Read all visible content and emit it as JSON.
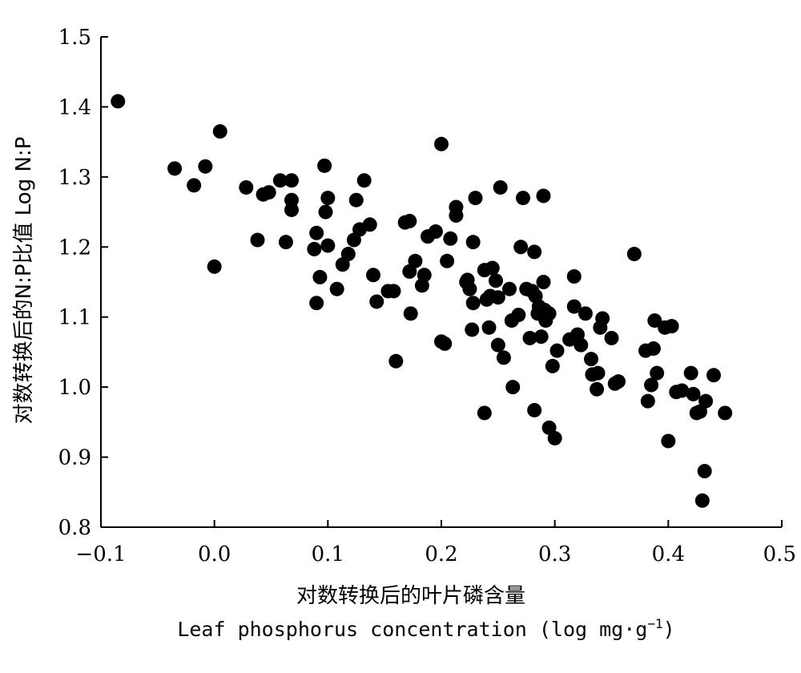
{
  "chart_data": {
    "type": "scatter",
    "title": "",
    "xlabel": "对数转换后的叶片磷含量",
    "xlabel_en": "Leaf phosphorus concentration (log mg·g",
    "xlabel_en_sup": "−1",
    "xlabel_en_close": ")",
    "ylabel": "对数转换后的N:P比值 Log N:P",
    "xlim": [
      -0.1,
      0.5
    ],
    "ylim": [
      0.8,
      1.5
    ],
    "x_ticks": [
      -0.1,
      0.0,
      0.1,
      0.2,
      0.3,
      0.4,
      0.5
    ],
    "x_tick_labels": [
      "−0.1",
      "0.0",
      "0.1",
      "0.2",
      "0.3",
      "0.4",
      "0.5"
    ],
    "y_ticks": [
      0.8,
      0.9,
      1.0,
      1.1,
      1.2,
      1.3,
      1.4,
      1.5
    ],
    "y_tick_labels": [
      "0.8",
      "0.9",
      "1.0",
      "1.1",
      "1.2",
      "1.3",
      "1.4",
      "1.5"
    ],
    "grid": false,
    "marker_color": "#000000",
    "points": [
      [
        -0.085,
        1.408
      ],
      [
        -0.035,
        1.312
      ],
      [
        -0.018,
        1.288
      ],
      [
        -0.008,
        1.315
      ],
      [
        0.005,
        1.365
      ],
      [
        0.0,
        1.172
      ],
      [
        0.028,
        1.285
      ],
      [
        0.038,
        1.21
      ],
      [
        0.043,
        1.275
      ],
      [
        0.048,
        1.278
      ],
      [
        0.058,
        1.295
      ],
      [
        0.063,
        1.207
      ],
      [
        0.068,
        1.295
      ],
      [
        0.068,
        1.267
      ],
      [
        0.068,
        1.253
      ],
      [
        0.088,
        1.197
      ],
      [
        0.09,
        1.22
      ],
      [
        0.09,
        1.12
      ],
      [
        0.093,
        1.157
      ],
      [
        0.097,
        1.316
      ],
      [
        0.098,
        1.25
      ],
      [
        0.1,
        1.27
      ],
      [
        0.1,
        1.202
      ],
      [
        0.108,
        1.14
      ],
      [
        0.113,
        1.175
      ],
      [
        0.118,
        1.19
      ],
      [
        0.123,
        1.21
      ],
      [
        0.125,
        1.267
      ],
      [
        0.128,
        1.225
      ],
      [
        0.132,
        1.295
      ],
      [
        0.137,
        1.232
      ],
      [
        0.14,
        1.16
      ],
      [
        0.143,
        1.122
      ],
      [
        0.153,
        1.137
      ],
      [
        0.158,
        1.137
      ],
      [
        0.16,
        1.037
      ],
      [
        0.168,
        1.235
      ],
      [
        0.172,
        1.237
      ],
      [
        0.172,
        1.165
      ],
      [
        0.173,
        1.105
      ],
      [
        0.177,
        1.18
      ],
      [
        0.183,
        1.145
      ],
      [
        0.185,
        1.16
      ],
      [
        0.188,
        1.215
      ],
      [
        0.195,
        1.222
      ],
      [
        0.2,
        1.347
      ],
      [
        0.2,
        1.065
      ],
      [
        0.203,
        1.062
      ],
      [
        0.205,
        1.18
      ],
      [
        0.208,
        1.212
      ],
      [
        0.213,
        1.257
      ],
      [
        0.213,
        1.245
      ],
      [
        0.222,
        1.15
      ],
      [
        0.223,
        1.153
      ],
      [
        0.225,
        1.14
      ],
      [
        0.227,
        1.082
      ],
      [
        0.228,
        1.12
      ],
      [
        0.228,
        1.207
      ],
      [
        0.23,
        1.27
      ],
      [
        0.238,
        1.167
      ],
      [
        0.238,
        0.963
      ],
      [
        0.24,
        1.125
      ],
      [
        0.242,
        1.085
      ],
      [
        0.243,
        1.13
      ],
      [
        0.245,
        1.17
      ],
      [
        0.248,
        1.152
      ],
      [
        0.25,
        1.128
      ],
      [
        0.252,
        1.285
      ],
      [
        0.25,
        1.06
      ],
      [
        0.255,
        1.042
      ],
      [
        0.26,
        1.14
      ],
      [
        0.262,
        1.095
      ],
      [
        0.263,
        1.0
      ],
      [
        0.268,
        1.103
      ],
      [
        0.27,
        1.2
      ],
      [
        0.272,
        1.27
      ],
      [
        0.275,
        1.14
      ],
      [
        0.278,
        1.07
      ],
      [
        0.28,
        1.137
      ],
      [
        0.282,
        1.193
      ],
      [
        0.282,
        0.967
      ],
      [
        0.283,
        1.13
      ],
      [
        0.285,
        1.105
      ],
      [
        0.286,
        1.115
      ],
      [
        0.288,
        1.072
      ],
      [
        0.29,
        1.15
      ],
      [
        0.29,
        1.273
      ],
      [
        0.291,
        1.11
      ],
      [
        0.292,
        1.095
      ],
      [
        0.295,
        1.105
      ],
      [
        0.295,
        0.942
      ],
      [
        0.298,
        1.03
      ],
      [
        0.3,
        0.927
      ],
      [
        0.302,
        1.052
      ],
      [
        0.313,
        1.068
      ],
      [
        0.317,
        1.158
      ],
      [
        0.317,
        1.115
      ],
      [
        0.32,
        1.075
      ],
      [
        0.323,
        1.06
      ],
      [
        0.327,
        1.105
      ],
      [
        0.332,
        1.04
      ],
      [
        0.333,
        1.018
      ],
      [
        0.337,
        0.997
      ],
      [
        0.34,
        1.085
      ],
      [
        0.342,
        1.098
      ],
      [
        0.338,
        1.02
      ],
      [
        0.35,
        1.07
      ],
      [
        0.353,
        1.005
      ],
      [
        0.356,
        1.008
      ],
      [
        0.37,
        1.19
      ],
      [
        0.38,
        1.052
      ],
      [
        0.382,
        0.98
      ],
      [
        0.385,
        1.003
      ],
      [
        0.387,
        1.055
      ],
      [
        0.388,
        1.095
      ],
      [
        0.39,
        1.02
      ],
      [
        0.397,
        1.085
      ],
      [
        0.4,
        0.923
      ],
      [
        0.403,
        1.087
      ],
      [
        0.407,
        0.993
      ],
      [
        0.412,
        0.995
      ],
      [
        0.42,
        1.02
      ],
      [
        0.422,
        0.99
      ],
      [
        0.425,
        0.963
      ],
      [
        0.428,
        0.965
      ],
      [
        0.432,
        0.88
      ],
      [
        0.433,
        0.98
      ],
      [
        0.43,
        0.838
      ],
      [
        0.44,
        1.017
      ],
      [
        0.45,
        0.963
      ]
    ]
  }
}
